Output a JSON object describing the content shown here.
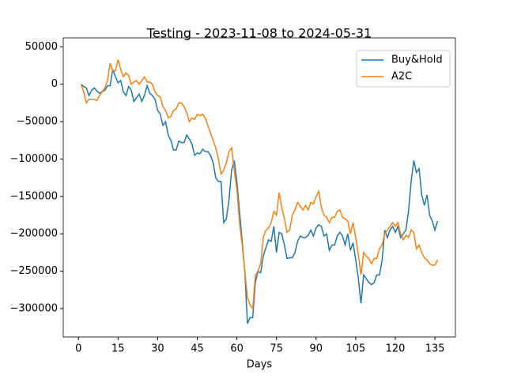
{
  "chart_data": {
    "type": "line",
    "title": "Testing - 2023-11-08 to 2024-05-31",
    "xlabel": "Days",
    "x": [
      1,
      2,
      3,
      4,
      5,
      6,
      7,
      8,
      9,
      10,
      11,
      12,
      13,
      14,
      15,
      16,
      17,
      18,
      19,
      20,
      21,
      22,
      23,
      24,
      25,
      26,
      27,
      28,
      29,
      30,
      31,
      32,
      33,
      34,
      35,
      36,
      37,
      38,
      39,
      40,
      41,
      42,
      43,
      44,
      45,
      46,
      47,
      48,
      49,
      50,
      51,
      52,
      53,
      54,
      55,
      56,
      57,
      58,
      59,
      60,
      61,
      62,
      63,
      64,
      65,
      66,
      67,
      68,
      69,
      70,
      71,
      72,
      73,
      74,
      75,
      76,
      77,
      78,
      79,
      80,
      81,
      82,
      83,
      84,
      85,
      86,
      87,
      88,
      89,
      90,
      91,
      92,
      93,
      94,
      95,
      96,
      97,
      98,
      99,
      100,
      101,
      102,
      103,
      104,
      105,
      106,
      107,
      108,
      109,
      110,
      111,
      112,
      113,
      114,
      115,
      116,
      117,
      118,
      119,
      120,
      121,
      122,
      123,
      124,
      125,
      126,
      127,
      128,
      129,
      130,
      131,
      132,
      133,
      134,
      135,
      136
    ],
    "series": [
      {
        "name": "Buy&Hold",
        "color": "#1f77b4",
        "values": [
          0,
          -3000,
          -5000,
          -15000,
          -8000,
          -5000,
          -9000,
          -12000,
          -10000,
          -8000,
          -2000,
          -2000,
          20000,
          10000,
          2000,
          5000,
          -10000,
          -15000,
          -3000,
          -8000,
          -23000,
          -18000,
          -13000,
          -23000,
          -15000,
          -2000,
          -12000,
          -15000,
          -20000,
          -35000,
          -40000,
          -55000,
          -50000,
          -68000,
          -75000,
          -88000,
          -88000,
          -76000,
          -78000,
          -78000,
          -68000,
          -73000,
          -80000,
          -95000,
          -92000,
          -93000,
          -87000,
          -90000,
          -90000,
          -95000,
          -105000,
          -125000,
          -130000,
          -130000,
          -185000,
          -180000,
          -155000,
          -115000,
          -102000,
          -130000,
          -170000,
          -210000,
          -250000,
          -320000,
          -312000,
          -312000,
          -265000,
          -250000,
          -252000,
          -230000,
          -218000,
          -208000,
          -210000,
          -190000,
          -225000,
          -198000,
          -200000,
          -215000,
          -233000,
          -232000,
          -232000,
          -225000,
          -210000,
          -203000,
          -205000,
          -205000,
          -202000,
          -195000,
          -203000,
          -192000,
          -188000,
          -190000,
          -203000,
          -200000,
          -222000,
          -215000,
          -215000,
          -203000,
          -198000,
          -203000,
          -215000,
          -200000,
          -222000,
          -212000,
          -235000,
          -260000,
          -293000,
          -255000,
          -260000,
          -265000,
          -268000,
          -265000,
          -255000,
          -255000,
          -235000,
          -195000,
          -205000,
          -195000,
          -190000,
          -198000,
          -190000,
          -205000,
          -200000,
          -195000,
          -170000,
          -130000,
          -102000,
          -118000,
          -113000,
          -148000,
          -162000,
          -148000,
          -175000,
          -183000,
          -195000,
          -183000
        ]
      },
      {
        "name": "A2C",
        "color": "#ff7f0e",
        "values": [
          0,
          -10000,
          -25000,
          -20000,
          -20000,
          -20000,
          -22000,
          -15000,
          -10000,
          -5000,
          5000,
          28000,
          18000,
          18000,
          33000,
          20000,
          10000,
          15000,
          12000,
          0,
          3000,
          5000,
          0,
          5000,
          10000,
          3000,
          3000,
          0,
          -10000,
          -15000,
          -17000,
          -30000,
          -35000,
          -45000,
          -43000,
          -35000,
          -33000,
          -25000,
          -25000,
          -30000,
          -38000,
          -50000,
          -45000,
          -47000,
          -40000,
          -42000,
          -40000,
          -45000,
          -55000,
          -65000,
          -75000,
          -85000,
          -100000,
          -120000,
          -115000,
          -105000,
          -90000,
          -85000,
          -115000,
          -140000,
          -185000,
          -215000,
          -250000,
          -285000,
          -295000,
          -300000,
          -255000,
          -250000,
          -240000,
          -205000,
          -195000,
          -192000,
          -185000,
          -170000,
          -175000,
          -145000,
          -165000,
          -180000,
          -198000,
          -195000,
          -175000,
          -168000,
          -158000,
          -163000,
          -168000,
          -162000,
          -168000,
          -158000,
          -160000,
          -150000,
          -143000,
          -165000,
          -175000,
          -178000,
          -185000,
          -178000,
          -178000,
          -170000,
          -168000,
          -178000,
          -180000,
          -183000,
          -200000,
          -185000,
          -205000,
          -228000,
          -255000,
          -225000,
          -230000,
          -233000,
          -240000,
          -233000,
          -233000,
          -220000,
          -215000,
          -200000,
          -195000,
          -190000,
          -185000,
          -190000,
          -185000,
          -200000,
          -208000,
          -202000,
          -205000,
          -195000,
          -198000,
          -220000,
          -215000,
          -225000,
          -232000,
          -235000,
          -240000,
          -242000,
          -242000,
          -235000
        ]
      }
    ],
    "xlim": [
      -5.75,
      142.75
    ],
    "xticks": [
      0,
      15,
      30,
      45,
      60,
      75,
      90,
      105,
      120,
      135
    ],
    "ylim": [
      -338000,
      62000
    ],
    "yticks": [
      {
        "value": -300000,
        "label": "−300000"
      },
      {
        "value": -250000,
        "label": "−250000"
      },
      {
        "value": -200000,
        "label": "−200000"
      },
      {
        "value": -150000,
        "label": "−150000"
      },
      {
        "value": -100000,
        "label": "−100000"
      },
      {
        "value": -50000,
        "label": "−50000"
      },
      0,
      50000
    ],
    "legend": "upper right"
  }
}
